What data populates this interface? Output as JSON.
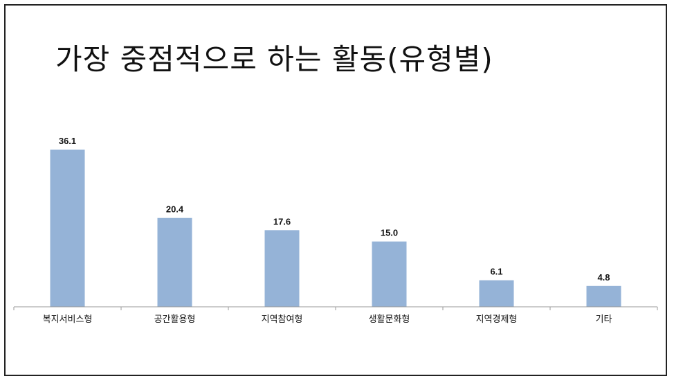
{
  "chart_data": {
    "type": "bar",
    "title": "가장 중점적으로 하는 활동(유형별)",
    "categories": [
      "복지서비스형",
      "공간활용형",
      "지역참여형",
      "생활문화형",
      "지역경제형",
      "기타"
    ],
    "values": [
      36.1,
      20.4,
      17.6,
      15.0,
      6.1,
      4.8
    ],
    "value_labels": [
      "36.1",
      "20.4",
      "17.6",
      "15.0",
      "6.1",
      "4.8"
    ],
    "xlabel": "",
    "ylabel": "",
    "ylim": [
      0,
      36.1
    ],
    "grid": false,
    "legend": "none",
    "bar_color": "#95b3d7"
  }
}
